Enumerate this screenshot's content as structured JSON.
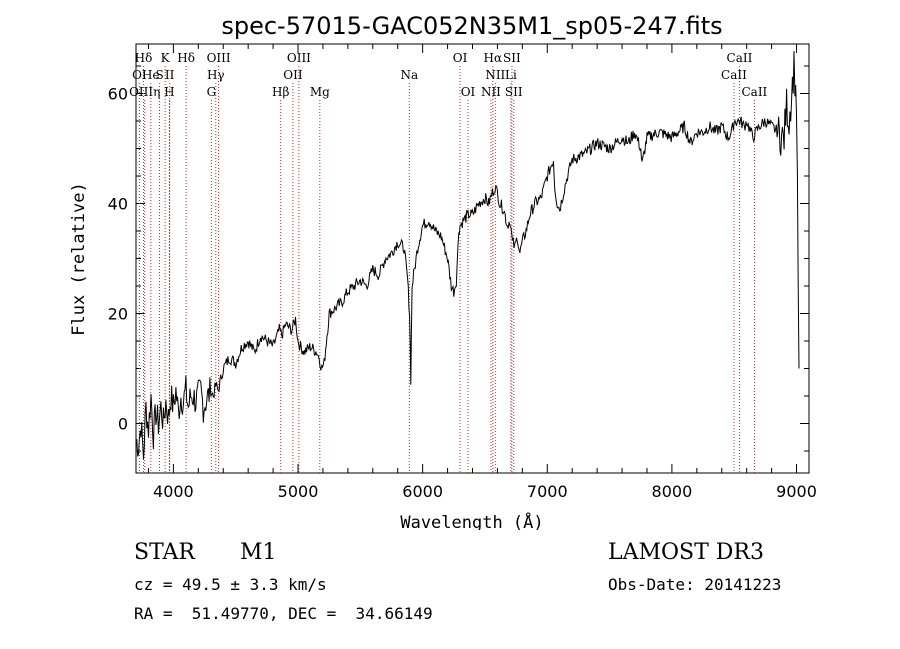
{
  "chart_data": {
    "type": "line",
    "title": "spec-57015-GAC052N35M1_sp05-247.fits",
    "xlabel": "Wavelength (Å)",
    "ylabel": "Flux (relative)",
    "xlim": [
      3700,
      9100
    ],
    "ylim": [
      -9,
      69
    ],
    "xticks": [
      4000,
      5000,
      6000,
      7000,
      8000,
      9000
    ],
    "yticks": [
      0,
      20,
      40,
      60
    ],
    "grid": false,
    "series": [
      {
        "name": "flux",
        "x": [
          3700,
          3720,
          3740,
          3760,
          3780,
          3800,
          3820,
          3840,
          3860,
          3880,
          3900,
          3920,
          3940,
          3960,
          3980,
          4000,
          4020,
          4040,
          4060,
          4080,
          4100,
          4120,
          4140,
          4160,
          4180,
          4200,
          4220,
          4240,
          4260,
          4280,
          4300,
          4320,
          4340,
          4360,
          4380,
          4400,
          4450,
          4500,
          4550,
          4600,
          4650,
          4700,
          4750,
          4800,
          4850,
          4870,
          4900,
          4950,
          4980,
          5000,
          5020,
          5050,
          5100,
          5150,
          5170,
          5190,
          5210,
          5250,
          5300,
          5350,
          5400,
          5450,
          5500,
          5550,
          5600,
          5650,
          5700,
          5750,
          5800,
          5850,
          5880,
          5895,
          5905,
          5915,
          5935,
          5960,
          6000,
          6050,
          6100,
          6150,
          6200,
          6230,
          6250,
          6270,
          6290,
          6300,
          6330,
          6370,
          6400,
          6450,
          6500,
          6530,
          6560,
          6580,
          6600,
          6620,
          6650,
          6680,
          6700,
          6720,
          6740,
          6760,
          6780,
          6800,
          6830,
          6860,
          6900,
          6950,
          7000,
          7050,
          7060,
          7080,
          7100,
          7150,
          7200,
          7300,
          7400,
          7500,
          7600,
          7650,
          7700,
          7750,
          7760,
          7800,
          7900,
          8000,
          8100,
          8150,
          8200,
          8250,
          8300,
          8350,
          8400,
          8450,
          8480,
          8500,
          8550,
          8580,
          8600,
          8650,
          8700,
          8750,
          8800,
          8850,
          8880,
          8900,
          8920,
          8940,
          8960,
          8980,
          9000,
          9020
        ],
        "values": [
          -3,
          -4,
          0,
          -6,
          3,
          -1,
          5,
          -2,
          2,
          0,
          3,
          0,
          4,
          1,
          5,
          3,
          6,
          2,
          5,
          4,
          6,
          3,
          5,
          5,
          4,
          5,
          6,
          3,
          4,
          5,
          6,
          5,
          7,
          6,
          8,
          10,
          12,
          11,
          14,
          15,
          13,
          16,
          15,
          14,
          17,
          16,
          18,
          17,
          19,
          15,
          14,
          13,
          14,
          13,
          12,
          10,
          11,
          20,
          21,
          22,
          24,
          25,
          26,
          25,
          28,
          27,
          30,
          31,
          33,
          32,
          26,
          20,
          8,
          25,
          28,
          32,
          36,
          37,
          35,
          34,
          30,
          25,
          24,
          26,
          35,
          36,
          37,
          38,
          38,
          40,
          41,
          40,
          42,
          43,
          42,
          40,
          39,
          36,
          37,
          33,
          32,
          34,
          31,
          33,
          35,
          38,
          40,
          41,
          45,
          48,
          43,
          40,
          39,
          44,
          48,
          49,
          51,
          50,
          52,
          51,
          53,
          50,
          47,
          52,
          53,
          52,
          54,
          51,
          53,
          53,
          54,
          53,
          54,
          52,
          53,
          55,
          55,
          54,
          55,
          52,
          54,
          55,
          54,
          53,
          52,
          52,
          58,
          55,
          60,
          65,
          58,
          10
        ]
      }
    ],
    "lines_top": [
      {
        "label": "Hδ",
        "x": 3760
      },
      {
        "label": "K",
        "x": 3934
      },
      {
        "label": "Hδ",
        "x": 4102
      },
      {
        "label": "OIII",
        "x": 4363
      },
      {
        "label": "OIII",
        "x": 5007
      },
      {
        "label": "OI",
        "x": 6300
      },
      {
        "label": "Hα",
        "x": 6563
      },
      {
        "label": "SII",
        "x": 6716
      },
      {
        "label": "CaII",
        "x": 8542
      }
    ],
    "lines_mid": [
      {
        "label": "OI",
        "x": 3727
      },
      {
        "label": "He",
        "x": 3819
      },
      {
        "label": "S",
        "x": 3889
      },
      {
        "label": "II",
        "x": 3970
      },
      {
        "label": "Hγ",
        "x": 4340
      },
      {
        "label": "OII",
        "x": 4959
      },
      {
        "label": "Na",
        "x": 5893
      },
      {
        "label": "NII",
        "x": 6583
      },
      {
        "label": "Li",
        "x": 6708
      },
      {
        "label": "CaII",
        "x": 8498
      }
    ],
    "lines_bot": [
      {
        "label": "OIIIη",
        "x": 3770
      },
      {
        "label": "H",
        "x": 3968
      },
      {
        "label": "G",
        "x": 4305
      },
      {
        "label": "Hβ",
        "x": 4861
      },
      {
        "label": "Mg",
        "x": 5175
      },
      {
        "label": "OI",
        "x": 6364
      },
      {
        "label": "NII",
        "x": 6548
      },
      {
        "label": "SII",
        "x": 6731
      },
      {
        "label": "CaII",
        "x": 8662
      }
    ]
  },
  "info": {
    "class": "STAR",
    "subclass": "M1",
    "survey": "LAMOST DR3",
    "redshift": "cz = 49.5 ± 3.3 km/s",
    "obsdate": "Obs-Date: 20141223",
    "coords": "RA =  51.49770, DEC =  34.66149"
  }
}
